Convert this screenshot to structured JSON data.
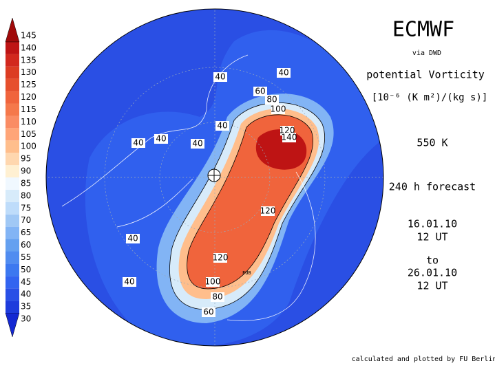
{
  "header": {
    "title": "ECMWF",
    "source": "via DWD",
    "quantity": "potential Vorticity",
    "unit": "[10⁻⁶ (K m²)/(kg s)]",
    "level": "550 K",
    "forecast": "240 h forecast",
    "start_date": "16.01.10",
    "start_time": "12 UT",
    "to": "to",
    "end_date": "26.01.10",
    "end_time": "12 UT"
  },
  "footer": "calculated and plotted by FU Berlin",
  "marker": "FUB",
  "colorbar": {
    "levels": [
      30,
      35,
      40,
      45,
      50,
      55,
      60,
      65,
      70,
      75,
      80,
      85,
      90,
      95,
      100,
      105,
      110,
      115,
      120,
      125,
      130,
      135,
      140,
      145
    ],
    "colors": [
      "#1428d2",
      "#1e3cdc",
      "#2850e6",
      "#3264f0",
      "#3c78f0",
      "#508cf0",
      "#64a0f0",
      "#82b4f5",
      "#a0c8f5",
      "#bedcfa",
      "#d7ebfa",
      "#f0f8ff",
      "#fff0d2",
      "#ffd7af",
      "#ffbe8c",
      "#ffa578",
      "#fa8c64",
      "#f5784b",
      "#f0643c",
      "#e6502d",
      "#dc3c23",
      "#d2281e",
      "#be1414",
      "#a00a0a"
    ]
  },
  "contour_labels": [
    40,
    40,
    40,
    40,
    40,
    40,
    40,
    40,
    60,
    80,
    100,
    120,
    140,
    120,
    120,
    100,
    80,
    60
  ]
}
